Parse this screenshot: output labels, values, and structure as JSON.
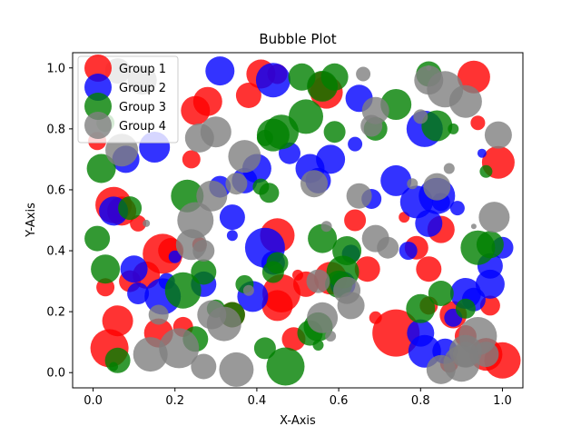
{
  "chart_data": {
    "type": "scatter",
    "title": "Bubble Plot",
    "xlabel": "X-Axis",
    "ylabel": "Y-Axis",
    "xlim": [
      -0.05,
      1.05
    ],
    "ylim": [
      -0.05,
      1.05
    ],
    "xticks": [
      "0.0",
      "0.2",
      "0.4",
      "0.6",
      "0.8",
      "1.0"
    ],
    "yticks": [
      "0.0",
      "0.2",
      "0.4",
      "0.6",
      "0.8",
      "1.0"
    ],
    "grid": false,
    "legend_position": "top-left",
    "alpha": 0.8,
    "series": [
      {
        "name": "Group 1",
        "color": "#ff0000",
        "points": [
          [
            0.01,
            0.76,
            10
          ],
          [
            0.05,
            0.55,
            20
          ],
          [
            0.06,
            0.17,
            17
          ],
          [
            0.07,
            0.53,
            16
          ],
          [
            0.03,
            0.28,
            10
          ],
          [
            0.04,
            0.08,
            21
          ],
          [
            0.09,
            0.3,
            12
          ],
          [
            0.13,
            0.32,
            15
          ],
          [
            0.11,
            0.49,
            9
          ],
          [
            0.16,
            0.13,
            16
          ],
          [
            0.17,
            0.39,
            22
          ],
          [
            0.19,
            0.4,
            14
          ],
          [
            0.22,
            0.15,
            11
          ],
          [
            0.24,
            0.7,
            10
          ],
          [
            0.25,
            0.86,
            16
          ],
          [
            0.28,
            0.89,
            16
          ],
          [
            0.26,
            0.42,
            8
          ],
          [
            0.34,
            0.19,
            14
          ],
          [
            0.38,
            0.91,
            14
          ],
          [
            0.41,
            0.98,
            16
          ],
          [
            0.45,
            0.98,
            11
          ],
          [
            0.45,
            0.45,
            19
          ],
          [
            0.46,
            0.26,
            21
          ],
          [
            0.45,
            0.22,
            17
          ],
          [
            0.49,
            0.11,
            13
          ],
          [
            0.5,
            0.32,
            6
          ],
          [
            0.52,
            0.29,
            14
          ],
          [
            0.56,
            0.94,
            16
          ],
          [
            0.57,
            0.92,
            18
          ],
          [
            0.58,
            0.31,
            18
          ],
          [
            0.67,
            0.34,
            14
          ],
          [
            0.64,
            0.5,
            12
          ],
          [
            0.69,
            0.18,
            7
          ],
          [
            0.74,
            0.13,
            26
          ],
          [
            0.76,
            0.51,
            6
          ],
          [
            0.79,
            0.41,
            13
          ],
          [
            0.82,
            0.34,
            14
          ],
          [
            0.85,
            0.47,
            15
          ],
          [
            0.82,
            0.22,
            10
          ],
          [
            0.87,
            0.03,
            10
          ],
          [
            0.88,
            0.19,
            15
          ],
          [
            0.91,
            0.12,
            12
          ],
          [
            0.93,
            0.97,
            18
          ],
          [
            0.94,
            0.82,
            8
          ],
          [
            0.97,
            0.22,
            11
          ],
          [
            0.99,
            0.69,
            18
          ],
          [
            1.0,
            0.04,
            20
          ],
          [
            0.96,
            0.06,
            18
          ]
        ]
      },
      {
        "name": "Group 2",
        "color": "#0000ff",
        "points": [
          [
            0.05,
            0.53,
            16
          ],
          [
            0.08,
            0.7,
            15
          ],
          [
            0.1,
            0.34,
            15
          ],
          [
            0.11,
            0.26,
            12
          ],
          [
            0.15,
            0.74,
            17
          ],
          [
            0.17,
            0.25,
            20
          ],
          [
            0.18,
            0.3,
            9
          ],
          [
            0.2,
            0.38,
            7
          ],
          [
            0.27,
            0.29,
            14
          ],
          [
            0.31,
            0.61,
            12
          ],
          [
            0.31,
            0.99,
            16
          ],
          [
            0.34,
            0.51,
            14
          ],
          [
            0.34,
            0.45,
            6
          ],
          [
            0.37,
            0.63,
            14
          ],
          [
            0.39,
            0.25,
            17
          ],
          [
            0.4,
            0.67,
            16
          ],
          [
            0.42,
            0.41,
            22
          ],
          [
            0.44,
            0.96,
            19
          ],
          [
            0.44,
            0.36,
            13
          ],
          [
            0.48,
            0.72,
            12
          ],
          [
            0.53,
            0.67,
            16
          ],
          [
            0.55,
            0.63,
            14
          ],
          [
            0.58,
            0.7,
            16
          ],
          [
            0.61,
            0.29,
            14
          ],
          [
            0.63,
            0.39,
            10
          ],
          [
            0.65,
            0.9,
            15
          ],
          [
            0.64,
            0.75,
            8
          ],
          [
            0.68,
            0.57,
            11
          ],
          [
            0.74,
            0.63,
            17
          ],
          [
            0.77,
            0.4,
            10
          ],
          [
            0.79,
            0.56,
            18
          ],
          [
            0.81,
            0.8,
            20
          ],
          [
            0.82,
            0.49,
            15
          ],
          [
            0.8,
            0.13,
            15
          ],
          [
            0.81,
            0.07,
            18
          ],
          [
            0.84,
            0.58,
            20
          ],
          [
            0.85,
            0.56,
            10
          ],
          [
            0.86,
            0.07,
            14
          ],
          [
            0.88,
            0.18,
            10
          ],
          [
            0.89,
            0.54,
            8
          ],
          [
            0.91,
            0.26,
            17
          ],
          [
            0.93,
            0.24,
            13
          ],
          [
            0.95,
            0.72,
            5
          ],
          [
            0.97,
            0.29,
            16
          ],
          [
            1.0,
            0.41,
            12
          ],
          [
            0.97,
            0.35,
            14
          ]
        ]
      },
      {
        "name": "Group 3",
        "color": "#008000",
        "points": [
          [
            0.02,
            0.67,
            16
          ],
          [
            0.03,
            0.34,
            16
          ],
          [
            0.01,
            0.44,
            14
          ],
          [
            0.05,
            0.02,
            5
          ],
          [
            0.06,
            0.04,
            14
          ],
          [
            0.09,
            0.54,
            13
          ],
          [
            0.22,
            0.27,
            20
          ],
          [
            0.23,
            0.58,
            18
          ],
          [
            0.25,
            0.11,
            14
          ],
          [
            0.27,
            0.33,
            14
          ],
          [
            0.3,
            0.21,
            10
          ],
          [
            0.34,
            0.19,
            14
          ],
          [
            0.37,
            0.29,
            10
          ],
          [
            0.41,
            0.61,
            9
          ],
          [
            0.42,
            0.08,
            12
          ],
          [
            0.42,
            0.77,
            9
          ],
          [
            0.43,
            0.59,
            11
          ],
          [
            0.44,
            0.78,
            18
          ],
          [
            0.44,
            0.33,
            12
          ],
          [
            0.45,
            0.36,
            12
          ],
          [
            0.46,
            0.79,
            19
          ],
          [
            0.47,
            0.02,
            21
          ],
          [
            0.51,
            0.97,
            15
          ],
          [
            0.52,
            0.84,
            19
          ],
          [
            0.53,
            0.13,
            14
          ],
          [
            0.55,
            0.15,
            16
          ],
          [
            0.55,
            0.09,
            6
          ],
          [
            0.56,
            0.44,
            16
          ],
          [
            0.56,
            0.94,
            17
          ],
          [
            0.59,
            0.97,
            15
          ],
          [
            0.59,
            0.79,
            12
          ],
          [
            0.6,
            0.29,
            15
          ],
          [
            0.61,
            0.33,
            18
          ],
          [
            0.62,
            0.4,
            16
          ],
          [
            0.69,
            0.8,
            13
          ],
          [
            0.74,
            0.88,
            17
          ],
          [
            0.8,
            0.21,
            16
          ],
          [
            0.82,
            0.98,
            14
          ],
          [
            0.84,
            0.81,
            17
          ],
          [
            0.85,
            0.26,
            14
          ],
          [
            0.88,
            0.8,
            6
          ],
          [
            0.91,
            0.21,
            11
          ],
          [
            0.94,
            0.41,
            19
          ],
          [
            0.97,
            0.42,
            15
          ],
          [
            0.96,
            0.66,
            7
          ],
          [
            0.03,
            0.82,
            10
          ]
        ]
      },
      {
        "name": "Group 4",
        "color": "#808080",
        "points": [
          [
            0.06,
            0.99,
            14
          ],
          [
            0.07,
            0.73,
            18
          ],
          [
            0.12,
            0.96,
            16
          ],
          [
            0.14,
            0.06,
            19
          ],
          [
            0.13,
            0.49,
            4
          ],
          [
            0.16,
            0.19,
            11
          ],
          [
            0.21,
            0.08,
            22
          ],
          [
            0.24,
            0.42,
            17
          ],
          [
            0.25,
            0.5,
            20
          ],
          [
            0.26,
            0.77,
            16
          ],
          [
            0.27,
            0.02,
            14
          ],
          [
            0.27,
            0.4,
            12
          ],
          [
            0.29,
            0.58,
            17
          ],
          [
            0.29,
            0.19,
            16
          ],
          [
            0.3,
            0.79,
            17
          ],
          [
            0.32,
            0.16,
            19
          ],
          [
            0.35,
            0.01,
            19
          ],
          [
            0.35,
            0.62,
            12
          ],
          [
            0.37,
            0.71,
            18
          ],
          [
            0.38,
            0.27,
            6
          ],
          [
            0.54,
            0.62,
            15
          ],
          [
            0.55,
            0.3,
            13
          ],
          [
            0.56,
            0.18,
            17
          ],
          [
            0.57,
            0.48,
            6
          ],
          [
            0.58,
            0.12,
            6
          ],
          [
            0.62,
            0.27,
            15
          ],
          [
            0.63,
            0.22,
            15
          ],
          [
            0.65,
            0.58,
            14
          ],
          [
            0.66,
            0.98,
            8
          ],
          [
            0.68,
            0.81,
            12
          ],
          [
            0.69,
            0.86,
            15
          ],
          [
            0.69,
            0.44,
            15
          ],
          [
            0.72,
            0.41,
            12
          ],
          [
            0.78,
            0.62,
            6
          ],
          [
            0.8,
            0.84,
            8
          ],
          [
            0.82,
            0.96,
            16
          ],
          [
            0.82,
            1.0,
            3
          ],
          [
            0.85,
            0.01,
            16
          ],
          [
            0.84,
            0.61,
            15
          ],
          [
            0.86,
            0.93,
            20
          ],
          [
            0.87,
            0.67,
            6
          ],
          [
            0.9,
            0.03,
            20
          ],
          [
            0.91,
            0.89,
            18
          ],
          [
            0.91,
            0.07,
            18
          ],
          [
            0.93,
            0.48,
            3
          ],
          [
            0.94,
            0.12,
            21
          ],
          [
            0.96,
            0.06,
            14
          ],
          [
            0.98,
            0.51,
            17
          ],
          [
            0.99,
            0.78,
            15
          ],
          [
            0.91,
            0.06,
            14
          ]
        ]
      }
    ]
  }
}
